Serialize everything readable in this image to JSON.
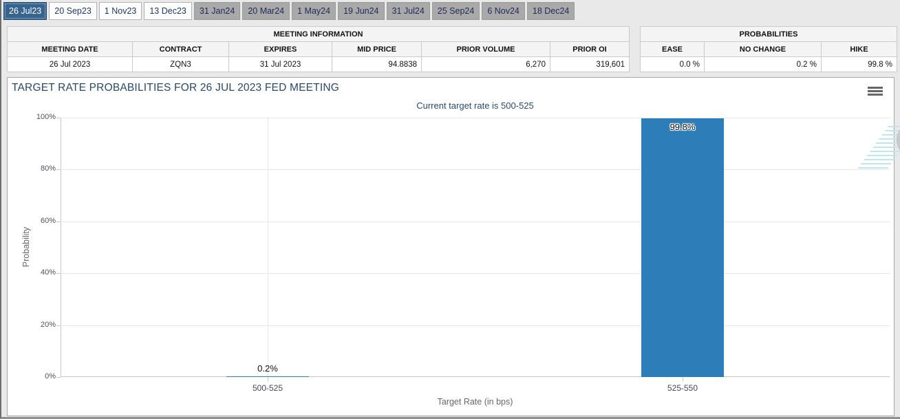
{
  "tabs": {
    "items": [
      {
        "label": "26 Jul23",
        "state": "selected"
      },
      {
        "label": "20 Sep23",
        "state": "default"
      },
      {
        "label": "1 Nov23",
        "state": "default"
      },
      {
        "label": "13 Dec23",
        "state": "default"
      },
      {
        "label": "31 Jan24",
        "state": "dimmed"
      },
      {
        "label": "20 Mar24",
        "state": "dimmed"
      },
      {
        "label": "1 May24",
        "state": "dimmed"
      },
      {
        "label": "19 Jun24",
        "state": "dimmed"
      },
      {
        "label": "31 Jul24",
        "state": "dimmed"
      },
      {
        "label": "25 Sep24",
        "state": "dimmed"
      },
      {
        "label": "6 Nov24",
        "state": "dimmed"
      },
      {
        "label": "18 Dec24",
        "state": "dimmed"
      }
    ]
  },
  "meeting_info": {
    "title": "MEETING INFORMATION",
    "columns": [
      "MEETING DATE",
      "CONTRACT",
      "EXPIRES",
      "MID PRICE",
      "PRIOR VOLUME",
      "PRIOR OI"
    ],
    "values": [
      "26 Jul 2023",
      "ZQN3",
      "31 Jul 2023",
      "94.8838",
      "6,270",
      "319,601"
    ]
  },
  "probabilities": {
    "title": "PROBABILITIES",
    "columns": [
      "EASE",
      "NO CHANGE",
      "HIKE"
    ],
    "values": [
      "0.0 %",
      "0.2 %",
      "99.8 %"
    ]
  },
  "chart": {
    "title": "TARGET RATE PROBABILITIES FOR 26 JUL 2023 FED MEETING",
    "subtitle": "Current target rate is 500-525",
    "menu_icon": "hamburger-icon",
    "watermark_letter": "Q"
  },
  "chart_data": {
    "type": "bar",
    "title": "TARGET RATE PROBABILITIES FOR 26 JUL 2023 FED MEETING",
    "subtitle": "Current target rate is 500-525",
    "categories": [
      "500-525",
      "525-550"
    ],
    "values": [
      0.2,
      99.8
    ],
    "data_labels": [
      "0.2%",
      "99.8%"
    ],
    "xlabel": "Target Rate (in bps)",
    "ylabel": "Probability",
    "ylim": [
      0,
      100
    ],
    "ytick_labels": [
      "0%",
      "20%",
      "40%",
      "60%",
      "80%",
      "100%"
    ],
    "grid": true,
    "legend": false,
    "bar_color": "#2d7db8",
    "accent_colors": {
      "selected_tab": "#37648f",
      "title_text": "#26496d",
      "watermark_stripe": "#bfe7f1"
    }
  }
}
